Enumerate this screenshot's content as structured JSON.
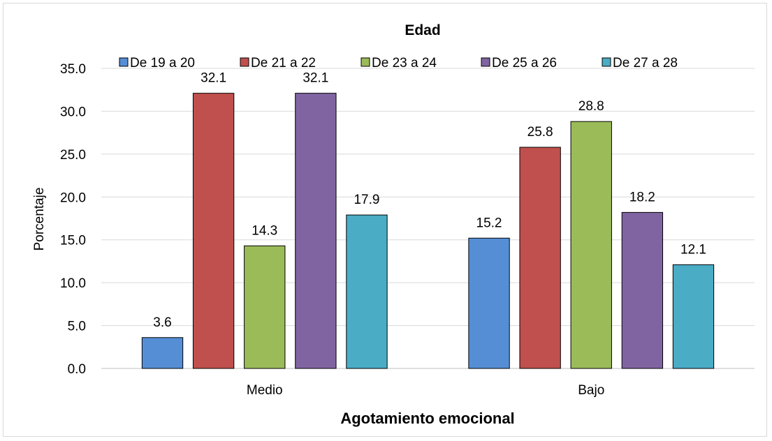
{
  "chart_data": {
    "type": "bar",
    "title": "Edad",
    "xlabel": "Agotamiento emocional",
    "ylabel": "Porcentaje",
    "categories": [
      "Medio",
      "Bajo"
    ],
    "series": [
      {
        "name": "De 19 a 20",
        "color": "#558ED5",
        "values": [
          3.6,
          15.2
        ]
      },
      {
        "name": "De 21 a 22",
        "color": "#C0504D",
        "values": [
          32.1,
          25.8
        ]
      },
      {
        "name": "De 23 a 24",
        "color": "#9BBB59",
        "values": [
          14.3,
          28.8
        ]
      },
      {
        "name": "De 25 a 26",
        "color": "#8064A2",
        "values": [
          32.1,
          18.2
        ]
      },
      {
        "name": "De 27 a 28",
        "color": "#4BACC6",
        "values": [
          17.9,
          12.1
        ]
      }
    ],
    "ylim": [
      0,
      35
    ],
    "yticks": [
      "0.0",
      "5.0",
      "10.0",
      "15.0",
      "20.0",
      "25.0",
      "30.0",
      "35.0"
    ],
    "ytick_step": 5,
    "grid": true,
    "legend_position": "top"
  }
}
